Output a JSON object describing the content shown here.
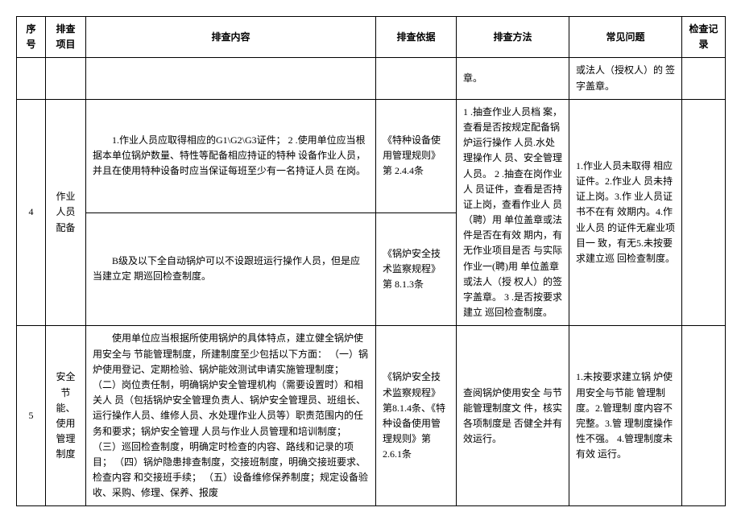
{
  "headers": {
    "seq": "序号",
    "item": "排查项目",
    "content": "排查内容",
    "basis": "排查依据",
    "method": "排查方法",
    "issue": "常见问题",
    "record": "检查记录"
  },
  "row_prev": {
    "method_frag": "章。",
    "issue_frag": "或法人（授权人）的 签字盖章。"
  },
  "row4": {
    "seq": "4",
    "item": "作业人员配备",
    "sub1": {
      "content": "1.作业人员应取得相应的G1\\G2\\G3证件；\n2 .使用单位应当根据本单位锅炉数量、特性等配备相应持证的特种 设备作业人员，并且在使用特种设备时应当保证每班至少有一名持证人员 在岗。",
      "basis": "《特种设备使用管理规则》第 2.4.4条"
    },
    "sub2": {
      "content": "B级及以下全自动锅炉可以不设跟班运行操作人员，但是应当建立定 期巡回检查制度。",
      "basis": "《锅炉安全技术监察规程》第 8.1.3条"
    },
    "method": "1     .抽查作业人员档 案，查看是否按规定配备锅炉运行操作  人员.水处理操作人 员、安全管理人员。\n2          .抽查在岗作业  人 员证件，查看是否持证上岗，查看作业人 员（聘）用 单位盖章或法件是否在有效 期内，有无作业项目是否 与实际作业一(聘)用 单位盖章或法人（授 权人）的签字盖章。\n3          .是否按要求建立 巡回检查制度。",
    "issue": "1.作业人员未取得  相应证件。2.作业人 员未持证上岗。3.作 业人员证书不在有  效期内。4.作业人员  的证件无雇业项目一     致，有无5.未按要求建立巡 回检查制度。"
  },
  "row5": {
    "seq": "5",
    "item": "安全节能、使用管理制度",
    "content": "使用单位应当根据所使用锅炉的具体特点，建立健全锅炉使用安全与 节能管理制度，所建制度至少包括以下方面：\n（一）锅炉使用登记、定期检验、锅炉能效测试申请实施管理制度；\n（二）岗位责任制，明确锅炉安全管理机构（需要设置时）和相关人 员（包括锅炉安全管理负责人、锅炉安全管理员、班组长、运行操作人员、维修人员、水处理作业人员等）职责范围内的任务和要求；锅炉安全管理 人员与作业人员管理和培训制度；\n（三）巡回检查制度，明确定时检查的内容、路线和记录的项目；\n（四）锅炉隐患排查制度，交接班制度，明确交接班要求、检查内容 和交接班手续；\n（五）设备维修保养制度；规定设备验收、采购、修理、保养、报废",
    "basis": "《锅炉安全技术监察规程》第8.1.4条、《特种设备使用管理规则》第2.6.1条",
    "method": "查阅锅炉使用安全 与节能管理制度文 件，核实各项制度是 否健全并有效运行。",
    "issue": "1.未按要求建立锅 炉使用安全与节能 管理制度。2.管理制 度内容不完整。3.管 理制度操作性不强。\n4.管理制度未有效 运行。"
  }
}
